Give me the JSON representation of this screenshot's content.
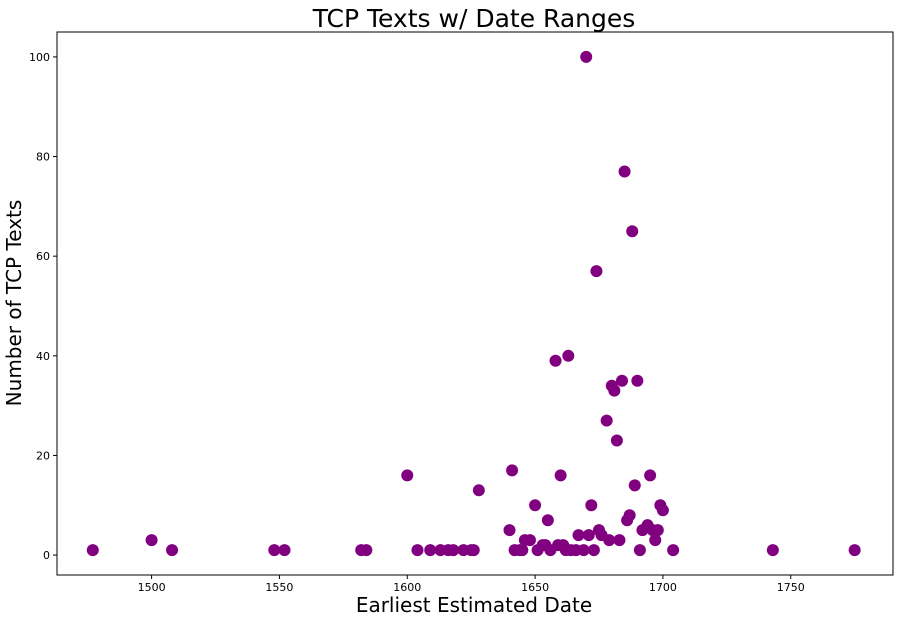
{
  "chart_data": {
    "type": "scatter",
    "title": "TCP Texts w/ Date Ranges",
    "xlabel": "Earliest Estimated Date",
    "ylabel": "Number of TCP Texts",
    "xlim": [
      1463,
      1790
    ],
    "ylim": [
      -4,
      105
    ],
    "x_ticks": [
      1500,
      1550,
      1600,
      1650,
      1700,
      1750
    ],
    "y_ticks": [
      0,
      20,
      40,
      60,
      80,
      100
    ],
    "grid": false,
    "marker_color": "#800080",
    "series": [
      {
        "points": [
          [
            1477,
            1
          ],
          [
            1500,
            3
          ],
          [
            1508,
            1
          ],
          [
            1548,
            1
          ],
          [
            1552,
            1
          ],
          [
            1582,
            1
          ],
          [
            1584,
            1
          ],
          [
            1600,
            16
          ],
          [
            1604,
            1
          ],
          [
            1609,
            1
          ],
          [
            1613,
            1
          ],
          [
            1616,
            1
          ],
          [
            1618,
            1
          ],
          [
            1622,
            1
          ],
          [
            1625,
            1
          ],
          [
            1626,
            1
          ],
          [
            1628,
            13
          ],
          [
            1640,
            5
          ],
          [
            1641,
            17
          ],
          [
            1642,
            1
          ],
          [
            1644,
            1
          ],
          [
            1645,
            1
          ],
          [
            1646,
            3
          ],
          [
            1648,
            3
          ],
          [
            1650,
            10
          ],
          [
            1651,
            1
          ],
          [
            1653,
            2
          ],
          [
            1654,
            2
          ],
          [
            1655,
            7
          ],
          [
            1656,
            1
          ],
          [
            1658,
            39
          ],
          [
            1659,
            2
          ],
          [
            1660,
            16
          ],
          [
            1661,
            2
          ],
          [
            1662,
            1
          ],
          [
            1663,
            40
          ],
          [
            1664,
            1
          ],
          [
            1666,
            1
          ],
          [
            1667,
            4
          ],
          [
            1669,
            1
          ],
          [
            1670,
            100
          ],
          [
            1671,
            4
          ],
          [
            1672,
            10
          ],
          [
            1673,
            1
          ],
          [
            1674,
            57
          ],
          [
            1675,
            5
          ],
          [
            1676,
            4
          ],
          [
            1678,
            27
          ],
          [
            1679,
            3
          ],
          [
            1680,
            34
          ],
          [
            1681,
            33
          ],
          [
            1682,
            23
          ],
          [
            1683,
            3
          ],
          [
            1684,
            35
          ],
          [
            1685,
            77
          ],
          [
            1686,
            7
          ],
          [
            1687,
            8
          ],
          [
            1688,
            65
          ],
          [
            1689,
            14
          ],
          [
            1690,
            35
          ],
          [
            1691,
            1
          ],
          [
            1692,
            5
          ],
          [
            1694,
            6
          ],
          [
            1695,
            16
          ],
          [
            1696,
            5
          ],
          [
            1697,
            3
          ],
          [
            1698,
            5
          ],
          [
            1699,
            10
          ],
          [
            1700,
            9
          ],
          [
            1704,
            1
          ],
          [
            1743,
            1
          ],
          [
            1775,
            1
          ]
        ]
      }
    ]
  }
}
